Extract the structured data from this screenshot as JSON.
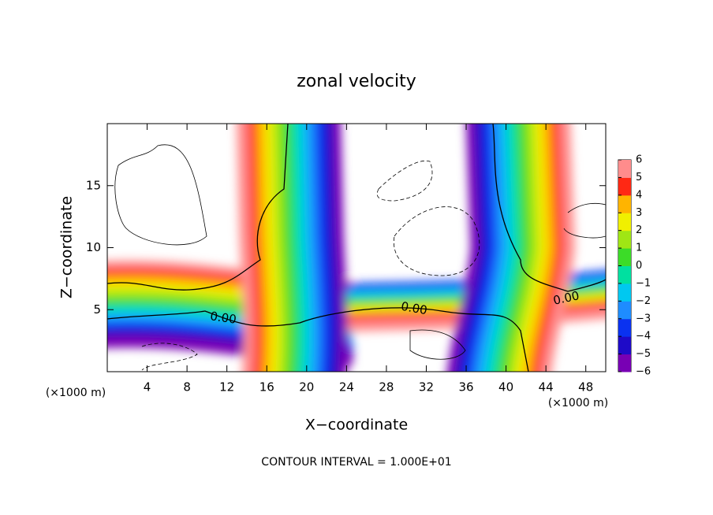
{
  "chart_data": {
    "type": "contour",
    "title": "zonal velocity",
    "x_label": "X−coordinate",
    "y_label": "Z−coordinate",
    "x_unit_label": "(×1000 m)",
    "y_unit_label": "(×1000 m)",
    "xlim": [
      0,
      50
    ],
    "ylim": [
      0,
      20
    ],
    "xticks": [
      4,
      8,
      12,
      16,
      20,
      24,
      28,
      32,
      36,
      40,
      44,
      48
    ],
    "yticks": [
      5,
      10,
      15
    ],
    "colorbar": {
      "lim": [
        -6,
        6
      ],
      "ticks": [
        6,
        5,
        4,
        3,
        2,
        1,
        0,
        {
          "value": -1,
          "label": "−1"
        },
        {
          "value": -2,
          "label": "−2"
        },
        {
          "value": -3,
          "label": "−3"
        },
        {
          "value": -4,
          "label": "−4"
        },
        {
          "value": -5,
          "label": "−5"
        },
        {
          "value": -6,
          "label": "−6"
        }
      ],
      "colors": [
        "#7800b4",
        "#1e0ac8",
        "#0a32f0",
        "#1e8cff",
        "#00c8f0",
        "#00e0a0",
        "#3cdc28",
        "#a0e614",
        "#f0f000",
        "#ffb400",
        "#ff2814",
        "#ff8c8c"
      ]
    },
    "contour_labels": [
      "0.00",
      "0.00",
      "0.00"
    ],
    "footer": "CONTOUR INTERVAL = 1.000E+01"
  }
}
